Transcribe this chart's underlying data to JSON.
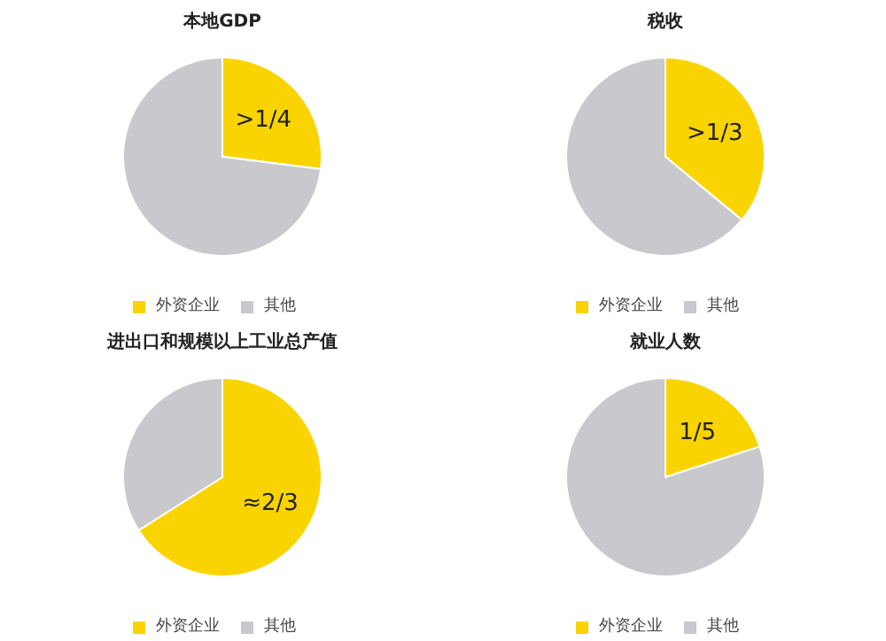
{
  "chart_data": [
    {
      "type": "pie",
      "title": "本地GDP",
      "categories": [
        "外资企业",
        "其他"
      ],
      "values": [
        27,
        73
      ],
      "colors": [
        "#fad400",
        "#c9c9cd"
      ],
      "annotations": [
        ">1/4"
      ],
      "legend": "bottom"
    },
    {
      "type": "pie",
      "title": "税收",
      "categories": [
        "外资企业",
        "其他"
      ],
      "values": [
        36,
        64
      ],
      "colors": [
        "#fad400",
        "#c9c9cd"
      ],
      "annotations": [
        ">1/3"
      ],
      "legend": "bottom"
    },
    {
      "type": "pie",
      "title": "进出口和规模以上工业总产值",
      "categories": [
        "外资企业",
        "其他"
      ],
      "values": [
        66,
        34
      ],
      "colors": [
        "#fad400",
        "#c9c9cd"
      ],
      "annotations": [
        "≈2/3"
      ],
      "legend": "bottom"
    },
    {
      "type": "pie",
      "title": "就业人数",
      "categories": [
        "外资企业",
        "其他"
      ],
      "values": [
        20,
        80
      ],
      "colors": [
        "#fad400",
        "#c9c9cd"
      ],
      "annotations": [
        "1/5"
      ],
      "legend": "bottom"
    }
  ]
}
